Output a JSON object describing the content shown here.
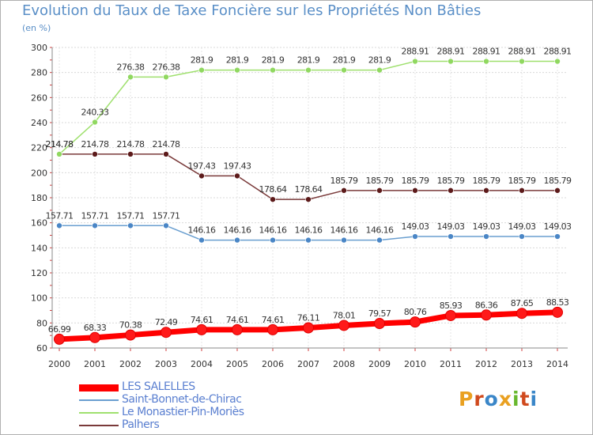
{
  "title": "Evolution du Taux de Taxe Foncière sur les Propriétés Non Bâties",
  "subtitle": "(en %)",
  "logo": {
    "letters": [
      "P",
      "r",
      "o",
      "x",
      "i",
      "t",
      "i"
    ],
    "colors": [
      "#e9a020",
      "#d04a1e",
      "#3a86c8",
      "#e9a020",
      "#68b82e",
      "#d04a1e",
      "#3a86c8"
    ]
  },
  "chart_data": {
    "type": "line",
    "title": "Evolution du Taux de Taxe Foncière sur les Propriétés Non Bâties",
    "ylabel": "(en %)",
    "xlabel": "",
    "ylim": [
      60,
      300
    ],
    "yticks": [
      60,
      80,
      100,
      120,
      140,
      160,
      180,
      200,
      220,
      240,
      260,
      280,
      300
    ],
    "categories": [
      "2000",
      "2001",
      "2002",
      "2003",
      "2004",
      "2005",
      "2006",
      "2007",
      "2008",
      "2009",
      "2010",
      "2011",
      "2012",
      "2013",
      "2014"
    ],
    "series": [
      {
        "name": "LES SALELLES",
        "color": "#ff0000",
        "marker": "#ff1a1a",
        "values": [
          66.99,
          68.33,
          70.38,
          72.49,
          74.61,
          74.61,
          74.61,
          76.11,
          78.01,
          79.57,
          80.76,
          85.93,
          86.36,
          87.65,
          88.53
        ],
        "labels": [
          "66.99",
          "68.33",
          "70.38",
          "72.49",
          "74.61",
          "74.61",
          "74.61",
          "76.11",
          "78.01",
          "79.57",
          "80.76",
          "85.93",
          "86.36",
          "87.65",
          "88.53"
        ]
      },
      {
        "name": "Saint-Bonnet-de-Chirac",
        "color": "#6a9fd0",
        "marker": "#4a86c6",
        "values": [
          157.71,
          157.71,
          157.71,
          157.71,
          146.16,
          146.16,
          146.16,
          146.16,
          146.16,
          146.16,
          149.03,
          149.03,
          149.03,
          149.03,
          149.03
        ],
        "labels": [
          "157.71",
          "157.71",
          "157.71",
          "157.71",
          "146.16",
          "146.16",
          "146.16",
          "146.16",
          "146.16",
          "146.16",
          "149.03",
          "149.03",
          "149.03",
          "149.03",
          "149.03"
        ]
      },
      {
        "name": "Le Monastier-Pin-Moriès",
        "color": "#9fe06e",
        "marker": "#90d860",
        "values": [
          214.78,
          240.33,
          276.38,
          276.38,
          281.9,
          281.9,
          281.9,
          281.9,
          281.9,
          281.9,
          288.91,
          288.91,
          288.91,
          288.91,
          288.91
        ],
        "labels": [
          "214.78",
          "240.33",
          "276.38",
          "276.38",
          "281.9",
          "281.9",
          "281.9",
          "281.9",
          "281.9",
          "281.9",
          "288.91",
          "288.91",
          "288.91",
          "288.91",
          "288.91"
        ]
      },
      {
        "name": "Palhers",
        "color": "#7a3a3a",
        "marker": "#5c1a1a",
        "values": [
          214.78,
          214.78,
          214.78,
          214.78,
          197.43,
          197.43,
          178.64,
          178.64,
          185.79,
          185.79,
          185.79,
          185.79,
          185.79,
          185.79,
          185.79
        ],
        "labels": [
          "214.78",
          "214.78",
          "214.78",
          "214.78",
          "197.43",
          "197.43",
          "178.64",
          "178.64",
          "185.79",
          "185.79",
          "185.79",
          "185.79",
          "185.79",
          "185.79",
          "185.79"
        ]
      }
    ]
  }
}
